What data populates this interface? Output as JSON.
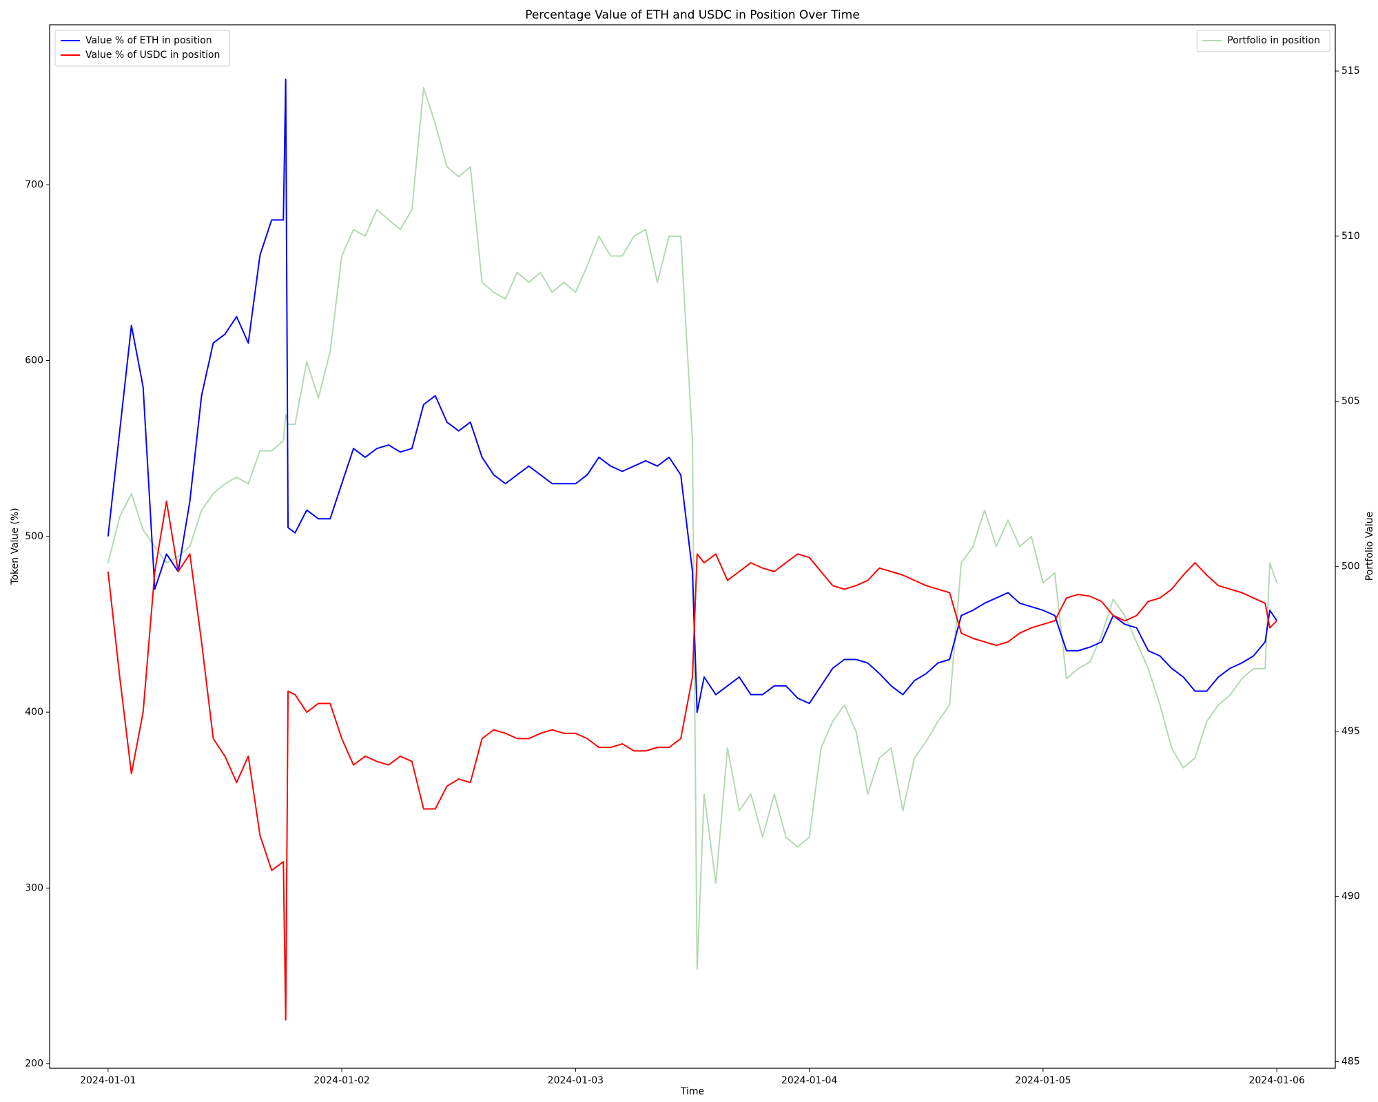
{
  "chart_data": {
    "type": "line",
    "title": "Percentage Value of ETH and USDC in Position Over Time",
    "xlabel": "Time",
    "ylabel": "Token Value (%)",
    "y2label": "Portfolio Value",
    "y2label_color": "#008000",
    "x": [
      0,
      0.05,
      0.1,
      0.15,
      0.2,
      0.25,
      0.3,
      0.35,
      0.4,
      0.45,
      0.5,
      0.55,
      0.6,
      0.65,
      0.7,
      0.75,
      0.76,
      0.77,
      0.8,
      0.85,
      0.9,
      0.95,
      1.0,
      1.05,
      1.1,
      1.15,
      1.2,
      1.25,
      1.3,
      1.35,
      1.4,
      1.45,
      1.5,
      1.55,
      1.6,
      1.65,
      1.7,
      1.75,
      1.8,
      1.85,
      1.9,
      1.95,
      2.0,
      2.05,
      2.1,
      2.15,
      2.2,
      2.25,
      2.3,
      2.35,
      2.4,
      2.45,
      2.5,
      2.52,
      2.55,
      2.6,
      2.65,
      2.7,
      2.75,
      2.8,
      2.85,
      2.9,
      2.95,
      3.0,
      3.05,
      3.1,
      3.15,
      3.2,
      3.25,
      3.3,
      3.35,
      3.4,
      3.45,
      3.5,
      3.55,
      3.6,
      3.65,
      3.7,
      3.75,
      3.8,
      3.85,
      3.9,
      3.95,
      4.0,
      4.05,
      4.1,
      4.15,
      4.2,
      4.25,
      4.3,
      4.35,
      4.4,
      4.45,
      4.5,
      4.55,
      4.6,
      4.65,
      4.7,
      4.75,
      4.8,
      4.85,
      4.9,
      4.95,
      4.97,
      5.0
    ],
    "xlim": [
      -0.25,
      5.25
    ],
    "xticks": [
      {
        "value": 0,
        "label": "2024-01-01"
      },
      {
        "value": 1,
        "label": "2024-01-02"
      },
      {
        "value": 2,
        "label": "2024-01-03"
      },
      {
        "value": 3,
        "label": "2024-01-04"
      },
      {
        "value": 4,
        "label": "2024-01-05"
      },
      {
        "value": 5,
        "label": "2024-01-06"
      }
    ],
    "ylim": [
      197.5,
      791
    ],
    "yticks": [
      200,
      300,
      400,
      500,
      600,
      700
    ],
    "y2lim": [
      484.8,
      516.4
    ],
    "y2ticks": [
      485,
      490,
      495,
      500,
      505,
      510,
      515
    ],
    "series": [
      {
        "name": "Value % of ETH in position",
        "color": "#0000ff",
        "legend": "upper left",
        "values": [
          500,
          560,
          620,
          585,
          470,
          490,
          480,
          520,
          580,
          610,
          615,
          625,
          610,
          660,
          680,
          680,
          760,
          505,
          502,
          515,
          510,
          510,
          530,
          550,
          545,
          550,
          552,
          548,
          550,
          575,
          580,
          565,
          560,
          565,
          545,
          535,
          530,
          535,
          540,
          535,
          530,
          530,
          530,
          535,
          545,
          540,
          537,
          540,
          543,
          540,
          545,
          535,
          480,
          400,
          420,
          410,
          415,
          420,
          410,
          410,
          415,
          415,
          408,
          405,
          415,
          425,
          430,
          430,
          428,
          422,
          415,
          410,
          418,
          422,
          428,
          430,
          455,
          458,
          462,
          465,
          468,
          462,
          460,
          458,
          455,
          435,
          435,
          437,
          440,
          455,
          450,
          448,
          435,
          432,
          425,
          420,
          412,
          412,
          420,
          425,
          428,
          432,
          440,
          458,
          452
        ]
      },
      {
        "name": "Value % of USDC in position",
        "color": "#ff0000",
        "legend": "upper left",
        "values": [
          480,
          420,
          365,
          400,
          480,
          520,
          480,
          490,
          440,
          385,
          375,
          360,
          375,
          330,
          310,
          315,
          225,
          412,
          410,
          400,
          405,
          405,
          385,
          370,
          375,
          372,
          370,
          375,
          372,
          345,
          345,
          358,
          362,
          360,
          385,
          390,
          388,
          385,
          385,
          388,
          390,
          388,
          388,
          385,
          380,
          380,
          382,
          378,
          378,
          380,
          380,
          385,
          420,
          490,
          485,
          490,
          475,
          480,
          485,
          482,
          480,
          485,
          490,
          488,
          480,
          472,
          470,
          472,
          475,
          482,
          480,
          478,
          475,
          472,
          470,
          468,
          445,
          442,
          440,
          438,
          440,
          445,
          448,
          450,
          452,
          465,
          467,
          466,
          463,
          455,
          452,
          455,
          463,
          465,
          470,
          478,
          485,
          478,
          472,
          470,
          468,
          465,
          462,
          448,
          452
        ]
      },
      {
        "name": "Portfolio in position",
        "color": "#b3d9b3",
        "legend": "upper right",
        "axis": "y2",
        "values": [
          500.1,
          501.5,
          502.2,
          501.1,
          500.6,
          500.1,
          500.3,
          500.6,
          501.7,
          502.2,
          502.5,
          502.7,
          502.5,
          503.5,
          503.5,
          503.8,
          504.6,
          504.3,
          504.3,
          506.2,
          505.1,
          506.5,
          509.4,
          510.2,
          510,
          510.8,
          510.5,
          510.2,
          510.8,
          514.5,
          513.4,
          512.1,
          511.8,
          512.1,
          508.6,
          508.3,
          508.1,
          508.9,
          508.6,
          508.9,
          508.3,
          508.6,
          508.3,
          509.1,
          510,
          509.4,
          509.4,
          510,
          510.2,
          508.6,
          510,
          510,
          503.8,
          487.8,
          493.1,
          490.4,
          494.5,
          492.6,
          493.1,
          491.8,
          493.1,
          491.8,
          491.5,
          491.8,
          494.5,
          495.3,
          495.8,
          495,
          493.1,
          494.2,
          494.5,
          492.6,
          494.2,
          494.7,
          495.3,
          495.8,
          500.1,
          500.6,
          501.7,
          500.6,
          501.4,
          500.6,
          500.9,
          499.5,
          499.8,
          496.6,
          496.9,
          497.1,
          497.9,
          499,
          498.5,
          497.7,
          496.9,
          495.8,
          494.5,
          493.9,
          494.2,
          495.3,
          495.8,
          496.1,
          496.6,
          496.9,
          496.9,
          500.1,
          499.5
        ]
      }
    ]
  }
}
